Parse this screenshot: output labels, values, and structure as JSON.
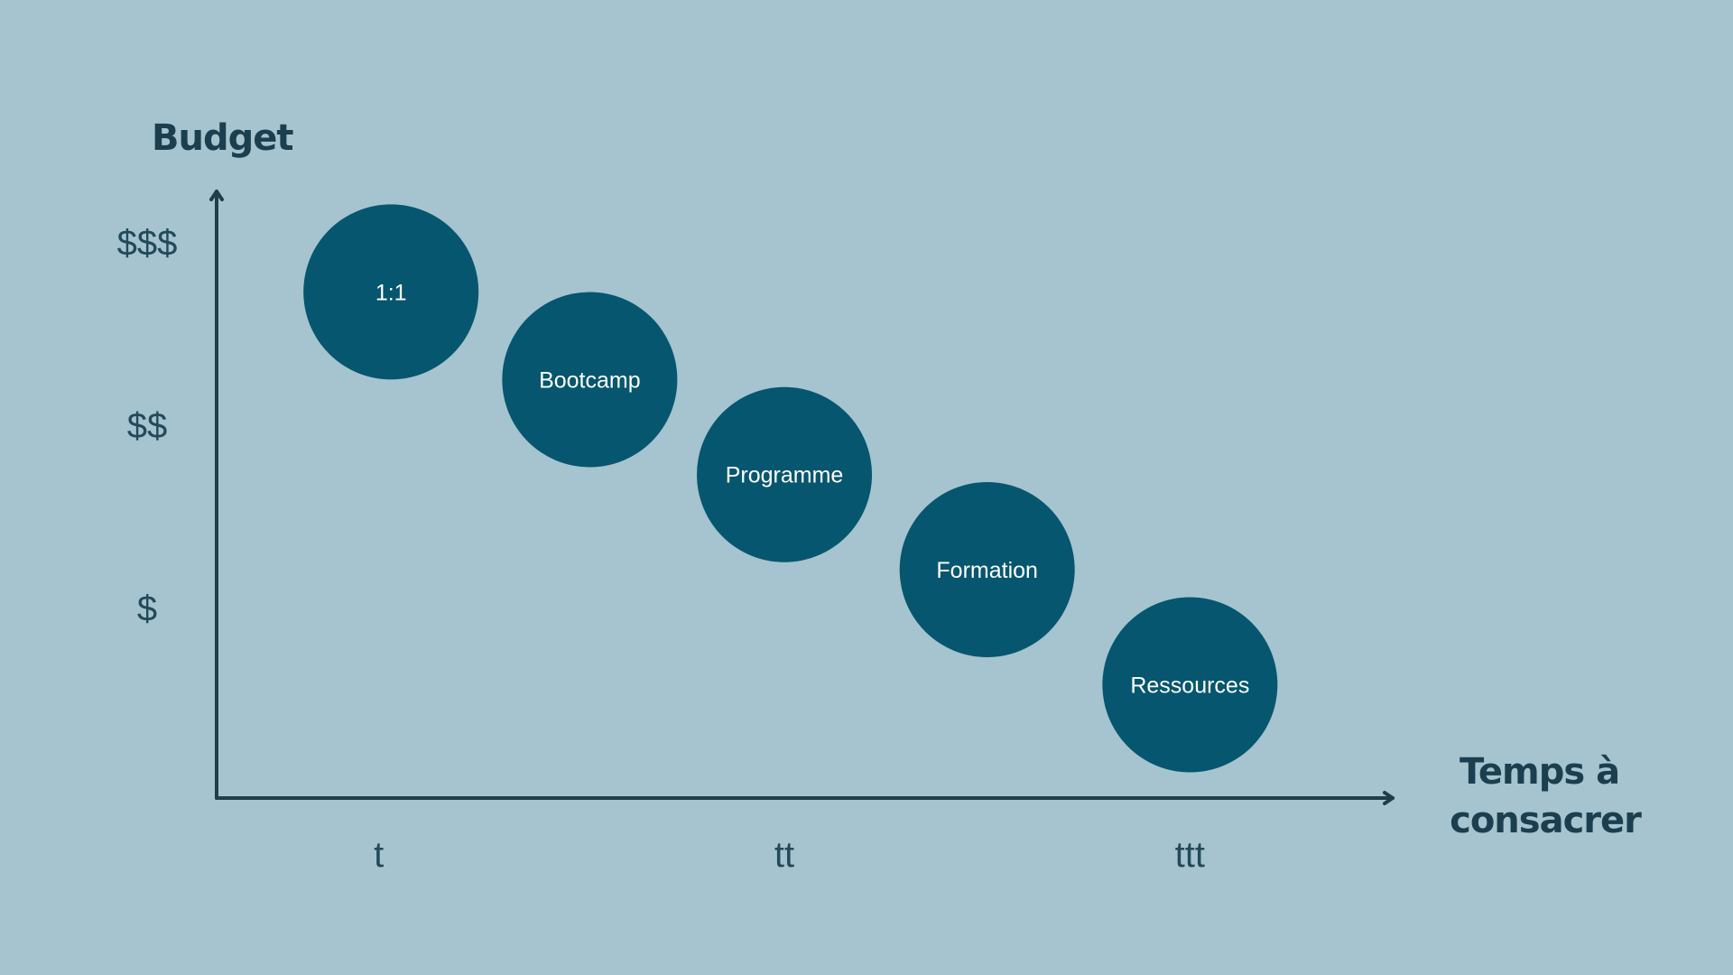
{
  "colors": {
    "background": "#a5c4cf",
    "bubble": "#06566f",
    "axis": "#1f3d4b",
    "title_text": "#1c3f4f",
    "tick_text": "#234a5a",
    "bubble_text": "#ffffff"
  },
  "chart_data": {
    "type": "scatter",
    "title": "",
    "ylabel": "Budget",
    "xlabel_lines": [
      "Temps à",
      "consacrer"
    ],
    "x_ticks": [
      {
        "label": "t",
        "value": 1
      },
      {
        "label": "tt",
        "value": 2
      },
      {
        "label": "ttt",
        "value": 3
      }
    ],
    "y_ticks": [
      {
        "label": "$",
        "value": 1
      },
      {
        "label": "$$",
        "value": 2
      },
      {
        "label": "$$$",
        "value": 3
      }
    ],
    "xlim": [
      0.6,
      3.5
    ],
    "ylim": [
      -0.04,
      3.28
    ],
    "grid": false,
    "points": [
      {
        "label": "1:1",
        "x": 1.03,
        "y": 2.73
      },
      {
        "label": "Bootcamp",
        "x": 1.52,
        "y": 2.25
      },
      {
        "label": "Programme",
        "x": 2.0,
        "y": 1.73
      },
      {
        "label": "Formation",
        "x": 2.5,
        "y": 1.21
      },
      {
        "label": "Ressources",
        "x": 3.0,
        "y": 0.58
      }
    ]
  }
}
